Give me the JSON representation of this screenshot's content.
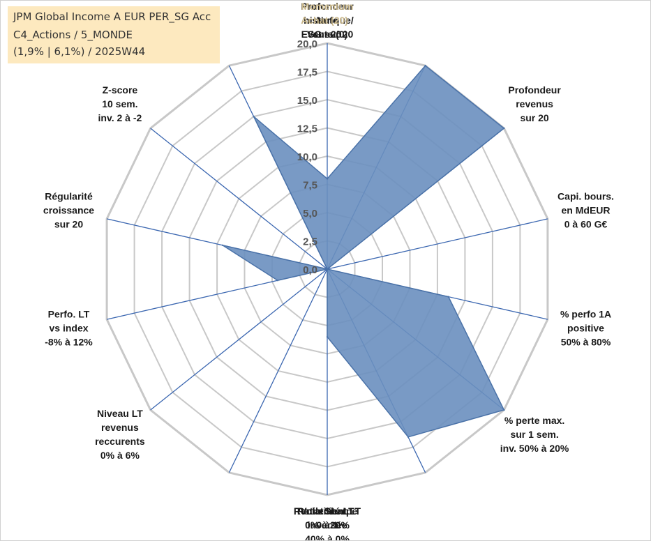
{
  "title": {
    "lines": [
      "JPM Global Income A EUR PER_SG Acc",
      "C4_Actions / 5_MONDE",
      "(1,9% | 6,1%) / 2025W44"
    ]
  },
  "colors": {
    "fill": "#6a8fbf",
    "stroke": "#4a72a8",
    "spoke": "#3a66b0",
    "grid": "#c8c8c8",
    "highlight_label": "#c9b78a",
    "title_bg": "#fde9bf"
  },
  "chart_data": {
    "type": "radar",
    "rmin": 0,
    "rmax": 20,
    "ticks": [
      "0,0",
      "2,5",
      "5,0",
      "7,5",
      "10,0",
      "12,5",
      "15,0",
      "17,5",
      "20,0"
    ],
    "tick_values": [
      0,
      2.5,
      5,
      7.5,
      10,
      12.5,
      15,
      17.5,
      20
    ],
    "axes": [
      {
        "lines": [
          {
            "segments": [
              {
                "text": "Note"
              }
            ]
          },
          {
            "segments": [
              {
                "text": "ESG sur 20"
              }
            ]
          }
        ],
        "value": 8
      },
      {
        "lines": [
          {
            "segments": [
              {
                "text": "Profondeur"
              }
            ]
          },
          {
            "segments": [
              {
                "text": "historique"
              }
            ]
          },
          {
            "segments": [
              {
                "text": "sur 20"
              }
            ]
          }
        ],
        "value": 20
      },
      {
        "lines": [
          {
            "segments": [
              {
                "text": "Profondeur"
              }
            ]
          },
          {
            "segments": [
              {
                "text": "revenus"
              }
            ]
          },
          {
            "segments": [
              {
                "text": "sur 20"
              }
            ]
          }
        ],
        "value": 20
      },
      {
        "lines": [
          {
            "segments": [
              {
                "text": "Capi. bours."
              }
            ]
          },
          {
            "segments": [
              {
                "text": "en MdEUR"
              }
            ]
          },
          {
            "segments": [
              {
                "text": "0 à 60 G€"
              }
            ]
          }
        ],
        "value": 0
      },
      {
        "lines": [
          {
            "segments": [
              {
                "text": "% perfo 1A"
              }
            ]
          },
          {
            "segments": [
              {
                "text": "positive"
              }
            ]
          },
          {
            "segments": [
              {
                "text": "50% à 80%"
              }
            ]
          }
        ],
        "value": 11
      },
      {
        "lines": [
          {
            "segments": [
              {
                "text": "% perte max."
              }
            ]
          },
          {
            "segments": [
              {
                "text": "sur 1 sem."
              }
            ]
          },
          {
            "segments": [
              {
                "text": "inv. 50% à 20%"
              }
            ]
          }
        ],
        "value": 20
      },
      {
        "lines": [
          {
            "segments": [
              {
                "text": "Volatilité LT"
              }
            ]
          },
          {
            "segments": [
              {
                "text": "inversée"
              }
            ]
          },
          {
            "segments": [
              {
                "text": "40% à 0%"
              }
            ]
          }
        ],
        "value": 16.5
      },
      {
        "lines": [
          {
            "segments": [
              {
                "text": "Ratio Sharpe"
              }
            ]
          },
          {
            "segments": [
              {
                "text": "0 à 1"
              }
            ]
          }
        ],
        "value": 6
      },
      {
        "lines": [
          {
            "segments": [
              {
                "text": "Rendement LT"
              }
            ]
          },
          {
            "segments": [
              {
                "text": "0% à 20%"
              }
            ]
          }
        ],
        "value": 0
      },
      {
        "lines": [
          {
            "segments": [
              {
                "text": "Niveau LT"
              }
            ]
          },
          {
            "segments": [
              {
                "text": "revenus"
              }
            ]
          },
          {
            "segments": [
              {
                "text": "reccurents"
              }
            ]
          },
          {
            "segments": [
              {
                "text": "0% à 6%"
              }
            ]
          }
        ],
        "value": 0
      },
      {
        "lines": [
          {
            "segments": [
              {
                "text": "Perfo. LT"
              }
            ]
          },
          {
            "segments": [
              {
                "text": "vs index"
              }
            ]
          },
          {
            "segments": [
              {
                "text": "-8% à 12%"
              }
            ]
          }
        ],
        "value": 4.5
      },
      {
        "lines": [
          {
            "segments": [
              {
                "text": "Régularité"
              }
            ]
          },
          {
            "segments": [
              {
                "text": "croissance"
              }
            ]
          },
          {
            "segments": [
              {
                "text": "sur 20"
              }
            ]
          }
        ],
        "value": 9.5
      },
      {
        "lines": [
          {
            "segments": [
              {
                "text": "Z-score"
              }
            ]
          },
          {
            "segments": [
              {
                "text": "10 sem."
              }
            ]
          },
          {
            "segments": [
              {
                "text": "inv. 2 à -2"
              }
            ]
          }
        ],
        "value": 0
      },
      {
        "lines": [
          {
            "segments": [
              {
                "text": "Momentum",
                "highlight": true
              }
            ]
          },
          {
            "segments": [
              {
                "text": "Achat (20)",
                "highlight": true
              },
              {
                "text": " /"
              }
            ]
          },
          {
            "segments": [
              {
                "text": "Vente (0)"
              }
            ]
          }
        ],
        "value": 15
      }
    ]
  }
}
